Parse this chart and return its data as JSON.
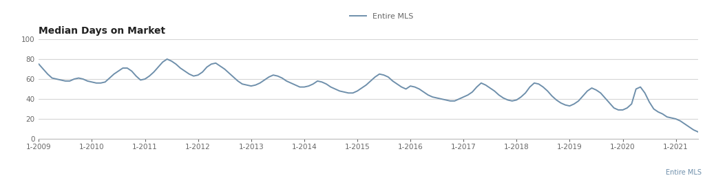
{
  "title": "Median Days on Market",
  "legend_label": "Entire MLS",
  "line_color": "#6e8fab",
  "background_color": "#ffffff",
  "grid_color": "#d5d5d5",
  "spine_color": "#bbbbbb",
  "tick_color": "#666666",
  "ylim": [
    0,
    100
  ],
  "yticks": [
    0,
    20,
    40,
    60,
    80,
    100
  ],
  "xtick_labels": [
    "1-2009",
    "1-2010",
    "1-2011",
    "1-2012",
    "1-2013",
    "1-2014",
    "1-2015",
    "1-2016",
    "1-2017",
    "1-2018",
    "1-2019",
    "1-2020",
    "1-2021"
  ],
  "months_values": [
    75,
    70,
    65,
    61,
    60,
    59,
    58,
    58,
    60,
    61,
    60,
    58,
    57,
    56,
    56,
    57,
    61,
    65,
    68,
    71,
    71,
    68,
    63,
    59,
    60,
    63,
    67,
    72,
    77,
    80,
    78,
    75,
    71,
    68,
    65,
    63,
    64,
    67,
    72,
    75,
    76,
    73,
    70,
    66,
    62,
    58,
    55,
    54,
    53,
    54,
    56,
    59,
    62,
    64,
    63,
    61,
    58,
    56,
    54,
    52,
    52,
    53,
    55,
    58,
    57,
    55,
    52,
    50,
    48,
    47,
    46,
    46,
    48,
    51,
    54,
    58,
    62,
    65,
    64,
    62,
    58,
    55,
    52,
    50,
    53,
    52,
    50,
    47,
    44,
    42,
    41,
    40,
    39,
    38,
    38,
    40,
    42,
    44,
    47,
    52,
    56,
    54,
    51,
    48,
    44,
    41,
    39,
    38,
    39,
    42,
    46,
    52,
    56,
    55,
    52,
    48,
    43,
    39,
    36,
    34,
    33,
    35,
    38,
    43,
    48,
    51,
    49,
    46,
    41,
    36,
    31,
    29,
    29,
    31,
    35,
    50,
    52,
    46,
    37,
    30,
    27,
    25,
    22,
    21,
    20,
    18,
    15,
    12,
    9,
    7
  ]
}
